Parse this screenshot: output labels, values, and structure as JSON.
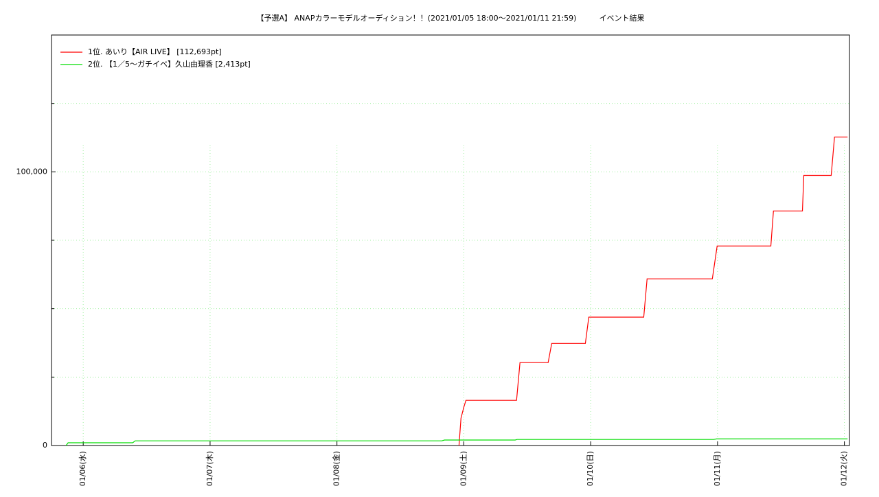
{
  "chart_data": {
    "type": "line",
    "title": "【予選A】 ANAPカラーモデルオーディション！！(2021/01/05 18:00〜2021/01/11 21:59)　　　イベント結果",
    "xlim": [
      5.75,
      12.04
    ],
    "xticks": [
      {
        "value": 6,
        "label": "01/06(水)"
      },
      {
        "value": 7,
        "label": "01/07(木)"
      },
      {
        "value": 8,
        "label": "01/08(金)"
      },
      {
        "value": 9,
        "label": "01/09(土)"
      },
      {
        "value": 10,
        "label": "01/10(日)"
      },
      {
        "value": 11,
        "label": "01/11(月)"
      },
      {
        "value": 12,
        "label": "01/12(火)"
      }
    ],
    "ylim": [
      0,
      150000
    ],
    "yticks": [
      0,
      {
        "value": 100000,
        "label": "100,000"
      }
    ],
    "y_minor_ticks": [
      25000,
      50000,
      75000,
      125000,
      150000
    ],
    "grid": true,
    "legend": "top-left",
    "series": [
      {
        "name": "1位. あいり【AIR LIVE】 [112,693pt]",
        "color": "#ff0000",
        "x": [
          8.962,
          8.978,
          9.0,
          9.017,
          9.416,
          9.443,
          9.665,
          9.693,
          9.958,
          9.985,
          10.418,
          10.445,
          10.959,
          10.997,
          11.42,
          11.441,
          11.669,
          11.68,
          11.896,
          11.922,
          12.025
        ],
        "values": [
          0,
          10000,
          14000,
          16500,
          16500,
          30300,
          30300,
          37300,
          37300,
          46900,
          46900,
          60900,
          60900,
          72900,
          72900,
          85700,
          85700,
          98700,
          98700,
          112693,
          112693
        ]
      },
      {
        "name": "2位. 【1／5〜ガチイベ】久山由理香 [2,413pt]",
        "color": "#00dd00",
        "x": [
          5.865,
          5.881,
          6.39,
          6.41,
          8.826,
          8.848,
          9.405,
          9.42,
          10.97,
          10.992,
          12.025
        ],
        "values": [
          0,
          1000,
          1000,
          1700,
          1700,
          2000,
          2000,
          2200,
          2200,
          2413,
          2413
        ]
      }
    ]
  }
}
